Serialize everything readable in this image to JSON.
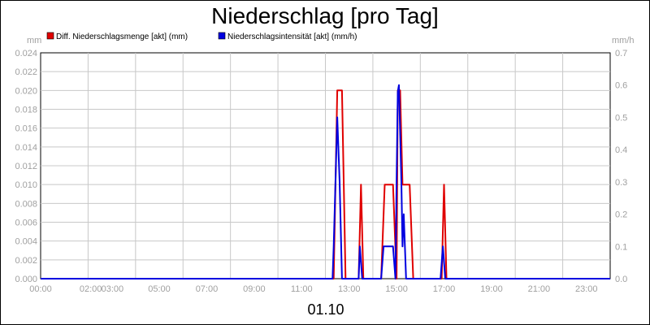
{
  "chart_data": {
    "type": "line",
    "title": "Niederschlag [pro Tag]",
    "date_label": "01.10",
    "y_left_unit": "mm",
    "y_right_unit": "mm/h",
    "y_left_range": [
      0,
      0.024
    ],
    "y_right_range": [
      0,
      0.7
    ],
    "y_left_ticks": [
      "0.000",
      "0.002",
      "0.004",
      "0.006",
      "0.008",
      "0.010",
      "0.012",
      "0.014",
      "0.016",
      "0.018",
      "0.020",
      "0.022",
      "0.024"
    ],
    "y_right_ticks": [
      "0.0",
      "0.1",
      "0.2",
      "0.3",
      "0.4",
      "0.5",
      "0.6",
      "0.7"
    ],
    "x_range_hours": [
      0,
      24
    ],
    "x_tick_labels": [
      {
        "h": 0,
        "label": "00:00"
      },
      {
        "h": 2,
        "label": "02:00"
      },
      {
        "h": 3,
        "label": "03:00"
      },
      {
        "h": 5,
        "label": "05:00"
      },
      {
        "h": 7,
        "label": "07:00"
      },
      {
        "h": 9,
        "label": "09:00"
      },
      {
        "h": 11,
        "label": "11:00"
      },
      {
        "h": 13,
        "label": "13:00"
      },
      {
        "h": 15,
        "label": "15:00"
      },
      {
        "h": 17,
        "label": "17:00"
      },
      {
        "h": 19,
        "label": "19:00"
      },
      {
        "h": 21,
        "label": "21:00"
      },
      {
        "h": 23,
        "label": "23:00"
      }
    ],
    "grid": true,
    "legend_placement": "top-left",
    "series": [
      {
        "name": "Diff. Niederschlagsmenge [akt] (mm)",
        "axis": "left",
        "color": "#e00000",
        "points": [
          [
            0,
            0
          ],
          [
            12.35,
            0
          ],
          [
            12.5,
            0.02
          ],
          [
            12.7,
            0.02
          ],
          [
            12.85,
            0
          ],
          [
            13.4,
            0
          ],
          [
            13.5,
            0.01
          ],
          [
            13.6,
            0
          ],
          [
            14.35,
            0
          ],
          [
            14.5,
            0.01
          ],
          [
            14.85,
            0.01
          ],
          [
            15.0,
            0
          ],
          [
            15.05,
            0.02
          ],
          [
            15.15,
            0.02
          ],
          [
            15.25,
            0.01
          ],
          [
            15.55,
            0.01
          ],
          [
            15.7,
            0
          ],
          [
            16.9,
            0
          ],
          [
            17.0,
            0.01
          ],
          [
            17.1,
            0
          ],
          [
            24,
            0
          ]
        ]
      },
      {
        "name": "Niederschlagsintensität [akt] (mm/h)",
        "axis": "right",
        "color": "#0000e0",
        "points": [
          [
            0,
            0
          ],
          [
            12.3,
            0
          ],
          [
            12.35,
            0.1
          ],
          [
            12.5,
            0.5
          ],
          [
            12.6,
            0.3
          ],
          [
            12.7,
            0
          ],
          [
            13.4,
            0
          ],
          [
            13.45,
            0.1
          ],
          [
            13.55,
            0
          ],
          [
            14.35,
            0
          ],
          [
            14.45,
            0.1
          ],
          [
            14.85,
            0.1
          ],
          [
            14.95,
            0
          ],
          [
            15.0,
            0.3
          ],
          [
            15.05,
            0.58
          ],
          [
            15.1,
            0.6
          ],
          [
            15.2,
            0.3
          ],
          [
            15.25,
            0.1
          ],
          [
            15.3,
            0.2
          ],
          [
            15.4,
            0
          ],
          [
            16.85,
            0
          ],
          [
            16.95,
            0.1
          ],
          [
            17.05,
            0
          ],
          [
            24,
            0
          ]
        ]
      }
    ]
  }
}
